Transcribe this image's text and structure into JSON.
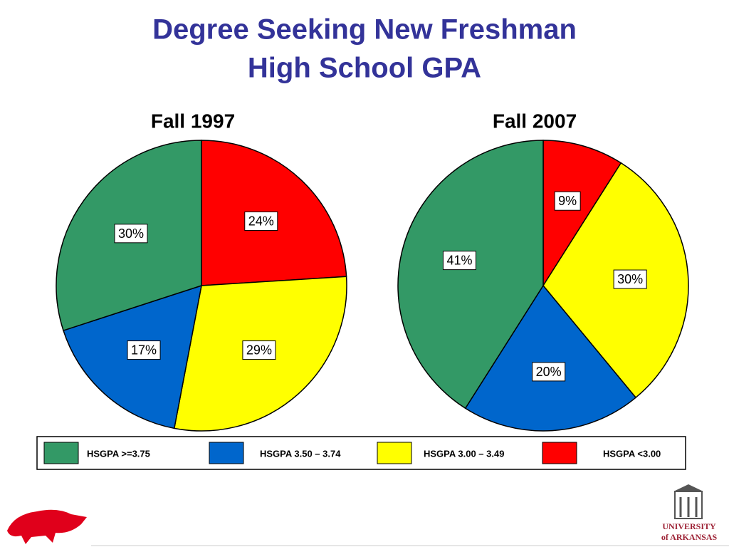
{
  "title": [
    "Degree Seeking New Freshman",
    "High School GPA"
  ],
  "legend": {
    "categories": [
      "HSGPA >=3.75",
      "HSGPA 3.50 – 3.74",
      "HSGPA 3.00 – 3.49",
      "HSGPA <3.00"
    ],
    "colors": [
      "#339966",
      "#0066cc",
      "#ffff00",
      "#ff0000"
    ]
  },
  "chart_data": [
    {
      "type": "pie",
      "title": "Fall 1997",
      "values": [
        30,
        17,
        29,
        24
      ],
      "value_labels": [
        "30%",
        "17%",
        "29%",
        "24%"
      ]
    },
    {
      "type": "pie",
      "title": "Fall 2007",
      "values": [
        41,
        20,
        30,
        9
      ],
      "value_labels": [
        "41%",
        "20%",
        "30%",
        "9%"
      ]
    }
  ],
  "logo": [
    "UNIVERSITY",
    "of ARKANSAS"
  ]
}
